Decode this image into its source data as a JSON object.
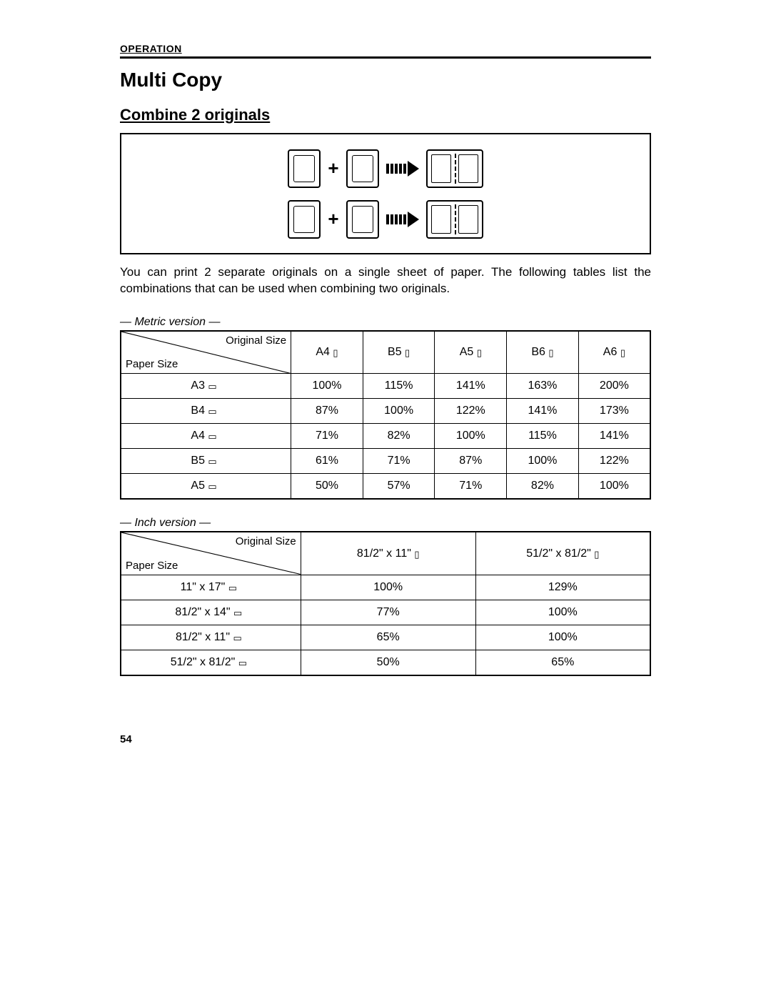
{
  "header": {
    "section": "OPERATION"
  },
  "title": "Multi Copy",
  "subtitle": "Combine 2 originals",
  "intro": "You can print 2 separate originals on a single sheet of paper. The following tables list the combinations that can be used when combining two originals.",
  "glyphs": {
    "portrait": "▯",
    "landscape": "▭"
  },
  "cornerLabels": {
    "original": "Original Size",
    "paper": "Paper Size"
  },
  "metric": {
    "caption": "— Metric version —",
    "columns": [
      "A4",
      "B5",
      "A5",
      "B6",
      "A6"
    ],
    "columnOrient": "portrait",
    "rows": [
      {
        "label": "A3",
        "orient": "landscape",
        "values": [
          "100%",
          "115%",
          "141%",
          "163%",
          "200%"
        ]
      },
      {
        "label": "B4",
        "orient": "landscape",
        "values": [
          "87%",
          "100%",
          "122%",
          "141%",
          "173%"
        ]
      },
      {
        "label": "A4",
        "orient": "landscape",
        "values": [
          "71%",
          "82%",
          "100%",
          "115%",
          "141%"
        ]
      },
      {
        "label": "B5",
        "orient": "landscape",
        "values": [
          "61%",
          "71%",
          "87%",
          "100%",
          "122%"
        ]
      },
      {
        "label": "A5",
        "orient": "landscape",
        "values": [
          "50%",
          "57%",
          "71%",
          "82%",
          "100%"
        ]
      }
    ]
  },
  "inch": {
    "caption": "— Inch version —",
    "columns": [
      "81/2\" x 11\"",
      "51/2\" x 81/2\""
    ],
    "columnOrient": "portrait",
    "rows": [
      {
        "label": "11\" x 17\"",
        "orient": "landscape",
        "values": [
          "100%",
          "129%"
        ]
      },
      {
        "label": "81/2\" x 14\"",
        "orient": "landscape",
        "values": [
          "77%",
          "100%"
        ]
      },
      {
        "label": "81/2\" x 11\"",
        "orient": "landscape",
        "values": [
          "65%",
          "100%"
        ]
      },
      {
        "label": "51/2\" x 81/2\"",
        "orient": "landscape",
        "values": [
          "50%",
          "65%"
        ]
      }
    ]
  },
  "pageNumber": "54"
}
